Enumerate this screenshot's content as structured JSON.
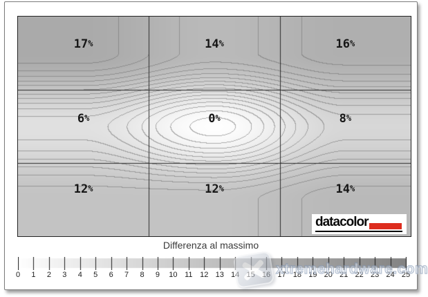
{
  "chart_data": {
    "type": "heatmap",
    "subtype": "contour-map",
    "title": "Differenza al massimo",
    "grid": {
      "rows": 3,
      "cols": 3,
      "grid_lines": "on"
    },
    "values": [
      [
        17,
        14,
        16
      ],
      [
        6,
        0,
        8
      ],
      [
        12,
        12,
        14
      ]
    ],
    "cell_labels": [
      [
        "17%",
        "14%",
        "16%"
      ],
      [
        "6%",
        "0%",
        "8%"
      ],
      [
        "12%",
        "12%",
        "14%"
      ]
    ],
    "contour_interval": 1,
    "colorbar": {
      "min": 0,
      "max": 25,
      "tick_labels": [
        "0",
        "1",
        "2",
        "3",
        "4",
        "5",
        "6",
        "7",
        "8",
        "9",
        "10",
        "11",
        "12",
        "13",
        "14",
        "15",
        "16",
        "17",
        "18",
        "19",
        "20",
        "21",
        "22",
        "23",
        "24",
        "25"
      ]
    },
    "colors": {
      "map_low": "#fefefe",
      "map_high": "#838383",
      "contour_line": "#8a8a8a",
      "grid_line": "#2a2a2a",
      "label_text": "#161616"
    }
  },
  "branding": {
    "logo_text": "datacolor",
    "logo_red": "#dd2c1e"
  },
  "watermark": {
    "text": "xtremehardware.com",
    "icon": "x-logo-icon"
  }
}
